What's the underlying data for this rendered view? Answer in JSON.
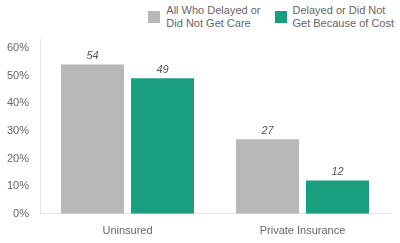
{
  "chart_data": {
    "type": "bar",
    "categories": [
      "Uninsured",
      "Private Insurance"
    ],
    "series": [
      {
        "name": "All Who Delayed or\nDid Not Get Care",
        "values": [
          54,
          27
        ],
        "color": "#b8b8b8"
      },
      {
        "name": "Delayed or Did Not\nGet Because of Cost",
        "values": [
          49,
          12
        ],
        "color": "#1a9e80"
      }
    ],
    "ylim": [
      0,
      63
    ],
    "yticks": [
      {
        "value": 0,
        "label": "0%"
      },
      {
        "value": 10,
        "label": "10%"
      },
      {
        "value": 20,
        "label": "20%"
      },
      {
        "value": 30,
        "label": "30%"
      },
      {
        "value": 40,
        "label": "40%"
      },
      {
        "value": 50,
        "label": "50%"
      },
      {
        "value": 60,
        "label": "60%"
      }
    ],
    "grid": false,
    "legend": "upper right",
    "data_labels": true
  }
}
